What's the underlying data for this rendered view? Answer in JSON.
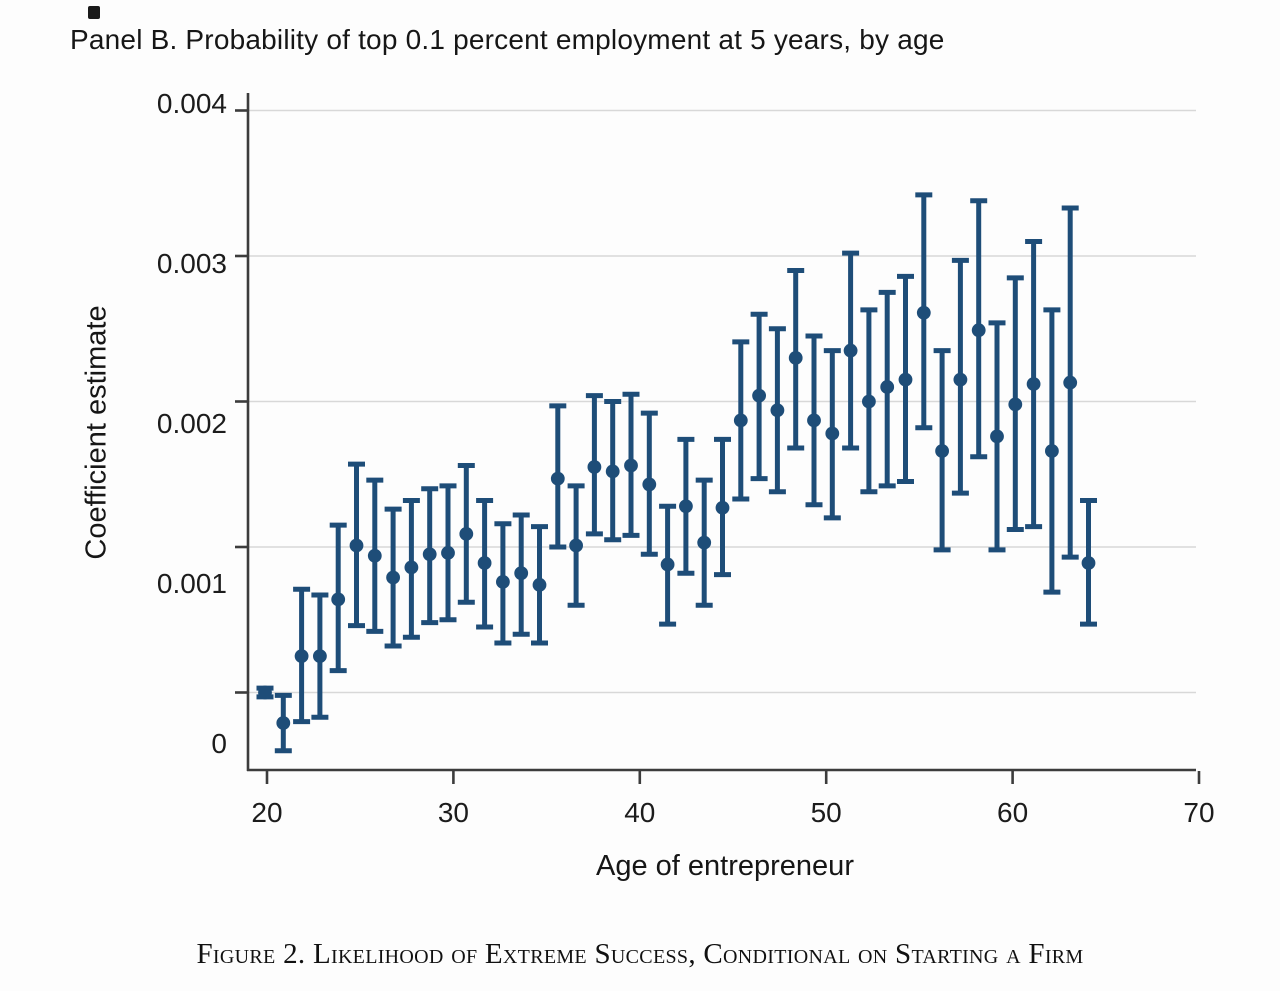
{
  "title": "Panel B. Probability of top 0.1 percent employment at 5 years, by age",
  "caption": "Figure 2. Likelihood of Extreme Success, Conditional on Starting a Firm",
  "colors": {
    "marker": "#1e4d78",
    "grid": "#d8d8d8",
    "axis": "#3c3c3c",
    "text": "#1c1c1c"
  },
  "chart_data": {
    "type": "scatter",
    "subtype": "coefficient-plot-with-95ci-error-bars",
    "title": "Panel B. Probability of top 0.1 percent employment at 5 years, by age",
    "xlabel": "Age of entrepreneur",
    "ylabel": "Coefficient estimate",
    "x_ticks": [
      20,
      30,
      40,
      50,
      60,
      70
    ],
    "y_ticks": [
      0,
      0.001,
      0.002,
      0.003,
      0.004
    ],
    "y_tick_labels": [
      "0",
      "0.001",
      "0.002",
      "0.003",
      "0.004"
    ],
    "xlim": [
      19,
      71
    ],
    "ylim": [
      -0.0005,
      0.004
    ],
    "grid": "horizontal-gridlines-on",
    "legend": "none",
    "points": [
      {
        "age": 20,
        "estimate": 0.0,
        "ci_low": -3e-05,
        "ci_high": 3e-05
      },
      {
        "age": 21,
        "estimate": -0.00021,
        "ci_low": -0.0004,
        "ci_high": -2e-05
      },
      {
        "age": 22,
        "estimate": 0.00025,
        "ci_low": -0.0002,
        "ci_high": 0.00071
      },
      {
        "age": 23,
        "estimate": 0.00025,
        "ci_low": -0.00017,
        "ci_high": 0.00067
      },
      {
        "age": 24,
        "estimate": 0.00064,
        "ci_low": 0.00015,
        "ci_high": 0.00115
      },
      {
        "age": 25,
        "estimate": 0.00101,
        "ci_low": 0.00046,
        "ci_high": 0.00157
      },
      {
        "age": 26,
        "estimate": 0.00094,
        "ci_low": 0.00042,
        "ci_high": 0.00146
      },
      {
        "age": 27,
        "estimate": 0.00079,
        "ci_low": 0.00032,
        "ci_high": 0.00126
      },
      {
        "age": 28,
        "estimate": 0.00086,
        "ci_low": 0.00038,
        "ci_high": 0.00132
      },
      {
        "age": 29,
        "estimate": 0.00095,
        "ci_low": 0.00048,
        "ci_high": 0.0014
      },
      {
        "age": 30,
        "estimate": 0.00096,
        "ci_low": 0.0005,
        "ci_high": 0.00142
      },
      {
        "age": 31,
        "estimate": 0.00109,
        "ci_low": 0.00062,
        "ci_high": 0.00156
      },
      {
        "age": 32,
        "estimate": 0.00089,
        "ci_low": 0.00045,
        "ci_high": 0.00132
      },
      {
        "age": 33,
        "estimate": 0.00076,
        "ci_low": 0.00034,
        "ci_high": 0.00116
      },
      {
        "age": 34,
        "estimate": 0.00082,
        "ci_low": 0.0004,
        "ci_high": 0.00122
      },
      {
        "age": 35,
        "estimate": 0.00074,
        "ci_low": 0.00034,
        "ci_high": 0.00114
      },
      {
        "age": 36,
        "estimate": 0.00147,
        "ci_low": 0.001,
        "ci_high": 0.00197
      },
      {
        "age": 37,
        "estimate": 0.00101,
        "ci_low": 0.0006,
        "ci_high": 0.00142
      },
      {
        "age": 38,
        "estimate": 0.00155,
        "ci_low": 0.00109,
        "ci_high": 0.00204
      },
      {
        "age": 39,
        "estimate": 0.00152,
        "ci_low": 0.00105,
        "ci_high": 0.002
      },
      {
        "age": 40,
        "estimate": 0.00156,
        "ci_low": 0.00108,
        "ci_high": 0.00205
      },
      {
        "age": 41,
        "estimate": 0.00143,
        "ci_low": 0.00095,
        "ci_high": 0.00192
      },
      {
        "age": 42,
        "estimate": 0.00088,
        "ci_low": 0.00047,
        "ci_high": 0.00128
      },
      {
        "age": 43,
        "estimate": 0.00128,
        "ci_low": 0.00082,
        "ci_high": 0.00174
      },
      {
        "age": 44,
        "estimate": 0.00103,
        "ci_low": 0.0006,
        "ci_high": 0.00146
      },
      {
        "age": 45,
        "estimate": 0.00127,
        "ci_low": 0.00081,
        "ci_high": 0.00174
      },
      {
        "age": 46,
        "estimate": 0.00187,
        "ci_low": 0.00133,
        "ci_high": 0.00241
      },
      {
        "age": 47,
        "estimate": 0.00204,
        "ci_low": 0.00147,
        "ci_high": 0.0026
      },
      {
        "age": 48,
        "estimate": 0.00194,
        "ci_low": 0.00138,
        "ci_high": 0.0025
      },
      {
        "age": 49,
        "estimate": 0.0023,
        "ci_low": 0.00168,
        "ci_high": 0.0029
      },
      {
        "age": 50,
        "estimate": 0.00187,
        "ci_low": 0.00129,
        "ci_high": 0.00245
      },
      {
        "age": 51,
        "estimate": 0.00178,
        "ci_low": 0.0012,
        "ci_high": 0.00235
      },
      {
        "age": 52,
        "estimate": 0.00235,
        "ci_low": 0.00168,
        "ci_high": 0.00302
      },
      {
        "age": 53,
        "estimate": 0.002,
        "ci_low": 0.00138,
        "ci_high": 0.00263
      },
      {
        "age": 54,
        "estimate": 0.0021,
        "ci_low": 0.00142,
        "ci_high": 0.00275
      },
      {
        "age": 55,
        "estimate": 0.00215,
        "ci_low": 0.00145,
        "ci_high": 0.00286
      },
      {
        "age": 56,
        "estimate": 0.00261,
        "ci_low": 0.00182,
        "ci_high": 0.00342
      },
      {
        "age": 57,
        "estimate": 0.00166,
        "ci_low": 0.00098,
        "ci_high": 0.00235
      },
      {
        "age": 58,
        "estimate": 0.00215,
        "ci_low": 0.00137,
        "ci_high": 0.00297
      },
      {
        "age": 59,
        "estimate": 0.00249,
        "ci_low": 0.00162,
        "ci_high": 0.00338
      },
      {
        "age": 60,
        "estimate": 0.00176,
        "ci_low": 0.00098,
        "ci_high": 0.00254
      },
      {
        "age": 61,
        "estimate": 0.00198,
        "ci_low": 0.00112,
        "ci_high": 0.00285
      },
      {
        "age": 62,
        "estimate": 0.00212,
        "ci_low": 0.00114,
        "ci_high": 0.0031
      },
      {
        "age": 63,
        "estimate": 0.00166,
        "ci_low": 0.00069,
        "ci_high": 0.00263
      },
      {
        "age": 64,
        "estimate": 0.00213,
        "ci_low": 0.00093,
        "ci_high": 0.00333
      },
      {
        "age": 65,
        "estimate": 0.00089,
        "ci_low": 0.00047,
        "ci_high": 0.00132
      }
    ]
  }
}
